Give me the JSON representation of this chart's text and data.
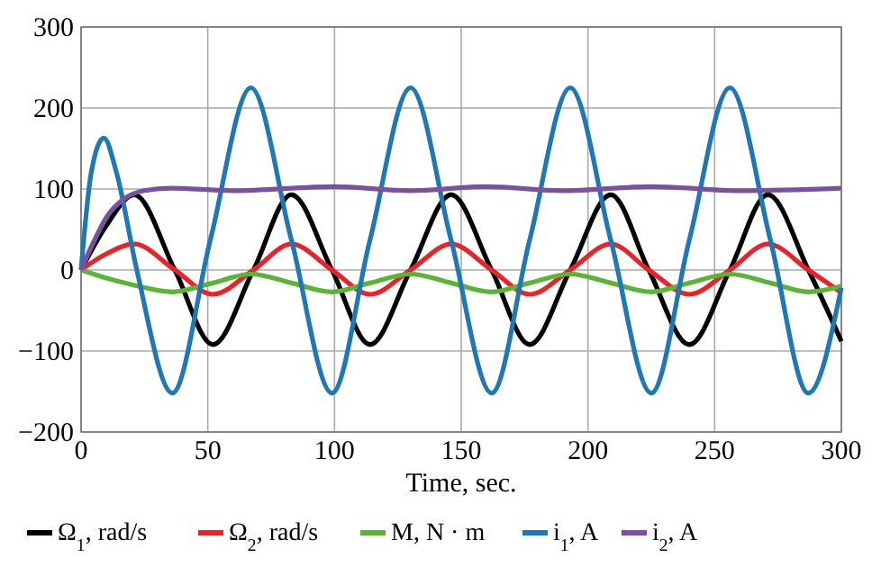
{
  "chart_data": {
    "type": "line",
    "xlabel": "Time, sec.",
    "xlim": [
      0,
      300
    ],
    "xticks": [
      0,
      50,
      100,
      150,
      200,
      250,
      300
    ],
    "ylim": [
      -200,
      300
    ],
    "yticks": [
      -200,
      -100,
      0,
      100,
      200,
      300
    ],
    "grid": true,
    "legend": "bottom",
    "line_style": "solid",
    "marker": "none",
    "series": [
      {
        "name": "Ω$_{1}$, rad/s",
        "color": "#000000",
        "x": [
          0,
          10,
          21,
          37,
          52,
          68,
          83,
          99,
          114,
          130,
          146,
          162,
          177,
          193,
          209,
          224,
          240,
          256,
          271,
          287,
          300
        ],
        "values": [
          0,
          55,
          93,
          0,
          -92,
          0,
          93,
          0,
          -92,
          0,
          93,
          0,
          -92,
          0,
          93,
          0,
          -92,
          0,
          93,
          0,
          -88
        ]
      },
      {
        "name": "Ω$_{2}$, rad/s",
        "color": "#e3262b",
        "x": [
          0,
          10,
          21,
          37,
          52,
          68,
          83,
          99,
          114,
          130,
          146,
          162,
          177,
          193,
          209,
          224,
          240,
          256,
          271,
          287,
          300
        ],
        "values": [
          0,
          20,
          32,
          0,
          -30,
          0,
          32,
          0,
          -30,
          0,
          32,
          0,
          -30,
          0,
          32,
          0,
          -30,
          0,
          32,
          0,
          -28
        ]
      },
      {
        "name": "M, N · m",
        "color": "#5cb338",
        "x": [
          0,
          10,
          20,
          36,
          52,
          67,
          83,
          99,
          114,
          130,
          146,
          162,
          177,
          193,
          209,
          225,
          240,
          256,
          272,
          287,
          300
        ],
        "values": [
          0,
          -10,
          -18,
          -27,
          -16,
          -5,
          -16,
          -27,
          -16,
          -5,
          -16,
          -27,
          -16,
          -5,
          -16,
          -27,
          -16,
          -5,
          -16,
          -27,
          -20
        ]
      },
      {
        "name": "i$_{1}$, A",
        "color": "#1f77b4",
        "x": [
          0,
          4,
          9,
          14,
          22,
          36,
          51,
          67,
          83,
          99,
          114,
          130,
          146,
          162,
          177,
          193,
          209,
          225,
          240,
          256,
          272,
          287,
          300
        ],
        "values": [
          0,
          120,
          163,
          120,
          0,
          -152,
          37,
          225,
          37,
          -152,
          37,
          225,
          37,
          -152,
          37,
          225,
          37,
          -152,
          37,
          225,
          37,
          -152,
          -22
        ]
      },
      {
        "name": "i$_{2}$, A",
        "color": "#7b519d",
        "x": [
          0,
          5,
          10,
          18,
          25,
          35,
          60,
          100,
          130,
          160,
          190,
          225,
          260,
          300
        ],
        "values": [
          0,
          35,
          65,
          90,
          98,
          101,
          98,
          103,
          98,
          103,
          98,
          103,
          98,
          101
        ]
      }
    ]
  }
}
